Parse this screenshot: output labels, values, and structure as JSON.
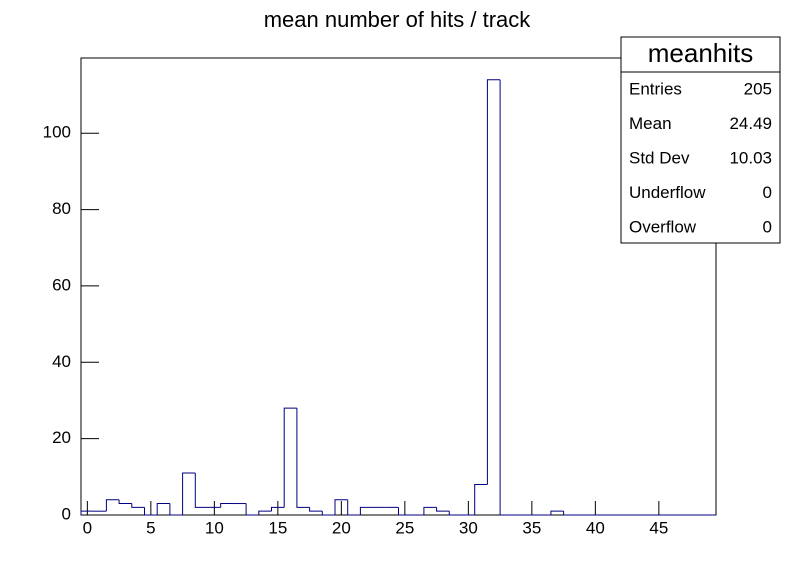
{
  "chart_data": {
    "type": "histogram",
    "title": "mean number of hits / track",
    "bins": [
      -0.5,
      0.5,
      1.5,
      2.5,
      3.5,
      4.5,
      5.5,
      6.5,
      7.5,
      8.5,
      9.5,
      10.5,
      11.5,
      12.5,
      13.5,
      14.5,
      15.5,
      16.5,
      17.5,
      18.5,
      19.5,
      20.5,
      21.5,
      22.5,
      23.5,
      24.5,
      25.5,
      26.5,
      27.5,
      28.5,
      29.5,
      30.5,
      31.5,
      32.5,
      33.5,
      34.5,
      35.5,
      36.5,
      37.5,
      38.5,
      39.5,
      40.5,
      41.5,
      42.5,
      43.5,
      44.5,
      45.5,
      46.5,
      47.5,
      48.5,
      49.5
    ],
    "counts": [
      1,
      1,
      4,
      3,
      2,
      0,
      3,
      0,
      11,
      2,
      2,
      3,
      3,
      0,
      1,
      2,
      28,
      2,
      1,
      0,
      4,
      0,
      2,
      2,
      2,
      0,
      0,
      2,
      1,
      0,
      0,
      8,
      114,
      0,
      0,
      0,
      0,
      1,
      0,
      0,
      0,
      0,
      0,
      0,
      0,
      0,
      0,
      0,
      0,
      0
    ],
    "color": "#000080",
    "xlim": [
      -0.5,
      49.5
    ],
    "xticks": [
      0,
      5,
      10,
      15,
      20,
      25,
      30,
      35,
      40,
      45
    ],
    "ylim": [
      0,
      119.7
    ],
    "yticks": [
      0,
      20,
      40,
      60,
      80,
      100
    ],
    "stats_box": {
      "title": "meanhits",
      "rows": [
        [
          "Entries",
          "205"
        ],
        [
          "Mean",
          "24.49"
        ],
        [
          "Std Dev",
          "10.03"
        ],
        [
          "Underflow",
          "0"
        ],
        [
          "Overflow",
          "0"
        ]
      ]
    }
  }
}
